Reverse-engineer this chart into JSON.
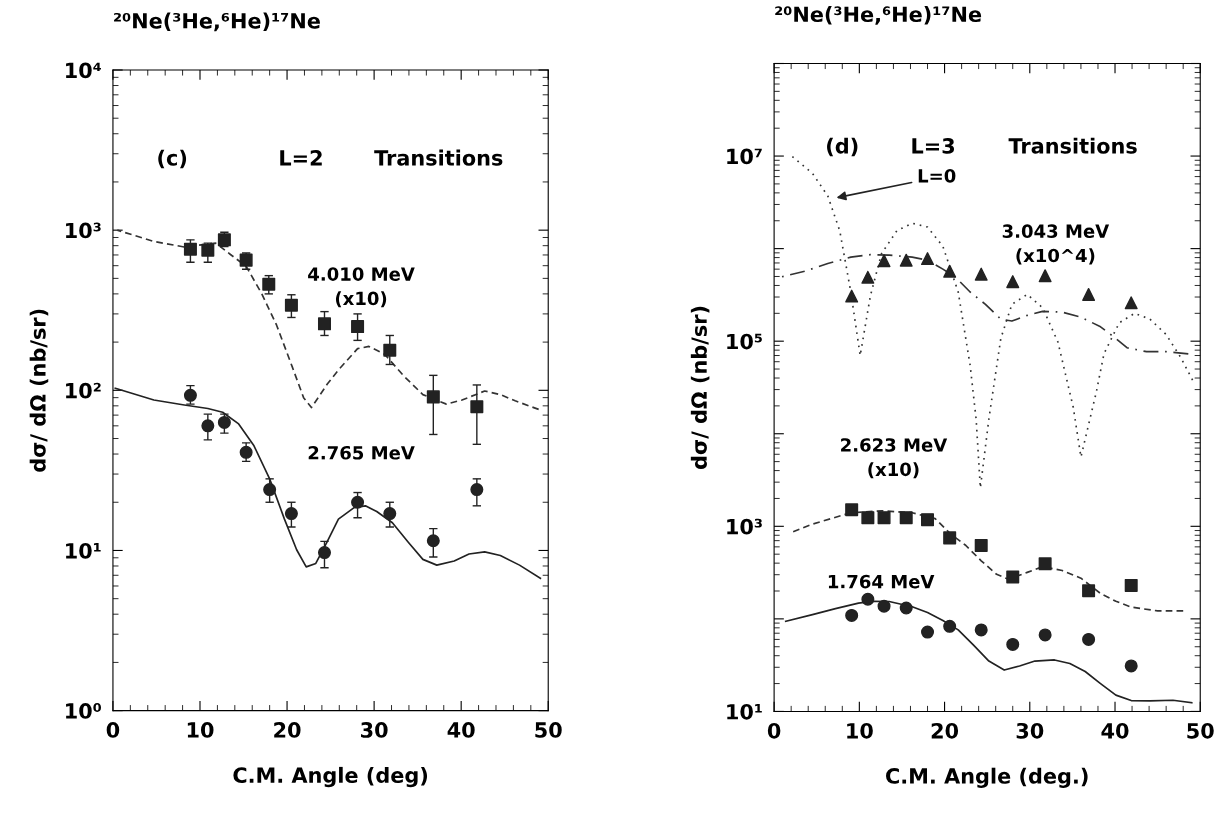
{
  "chart_data": [
    {
      "type": "scatter",
      "title": "²⁰Ne(³He,⁶He)¹⁷Ne",
      "xlabel": "C.M. Angle (deg)",
      "ylabel": "dσ/ dΩ (nb/sr)",
      "log": "y",
      "xlim": [
        0,
        50
      ],
      "xticks": [
        0,
        10,
        20,
        30,
        40,
        50
      ],
      "ylim": [
        1,
        10000
      ],
      "yticks": [
        {
          "value": 1,
          "label": "10⁰"
        },
        {
          "value": 10,
          "label": "10¹"
        },
        {
          "value": 100,
          "label": "10²"
        },
        {
          "value": 1000,
          "label": "10³"
        },
        {
          "value": 10000,
          "label": "10⁴"
        }
      ],
      "annotations": [
        "(c)",
        "L=2",
        "Transitions"
      ],
      "series": [
        {
          "name": "4.010 MeV\n(x10)",
          "marker": "square",
          "color": "#222222",
          "x": [
            8.9,
            10.9,
            12.8,
            15.3,
            17.9,
            20.5,
            24.3,
            28.1,
            31.8,
            36.8,
            41.8
          ],
          "values": [
            760,
            750,
            870,
            650,
            460,
            340,
            260,
            250,
            178,
            91,
            79
          ],
          "errors": [
            [
              630,
              870
            ],
            [
              630,
              830
            ],
            [
              790,
              970
            ],
            [
              570,
              720
            ],
            [
              400,
              520
            ],
            [
              285,
              395
            ],
            [
              220,
              310
            ],
            [
              205,
              300
            ],
            [
              145,
              220
            ],
            [
              53,
              124
            ],
            [
              46,
              108
            ]
          ]
        },
        {
          "name": "2.765 MeV",
          "marker": "circle",
          "color": "#222222",
          "x": [
            8.9,
            10.9,
            12.8,
            15.3,
            18.0,
            20.5,
            24.3,
            28.1,
            31.8,
            36.8,
            41.8
          ],
          "values": [
            93,
            60,
            63,
            41,
            24,
            17,
            9.7,
            20,
            17,
            11.5,
            24
          ],
          "errors": [
            [
              82,
              107
            ],
            [
              49,
              71
            ],
            [
              54,
              71
            ],
            [
              36,
              47
            ],
            [
              20,
              28
            ],
            [
              14,
              20
            ],
            [
              7.8,
              11.4
            ],
            [
              16,
              23
            ],
            [
              14,
              20
            ],
            [
              9.1,
              13.7
            ],
            [
              19,
              28
            ]
          ]
        },
        {
          "type": "line",
          "line_style": "dashed",
          "color": "#333333",
          "x": [
            0.5,
            4.7,
            8.2,
            11.8,
            13.5,
            15.3,
            17.1,
            18.8,
            20.6,
            21.9,
            22.8,
            24.6,
            25.9,
            28.1,
            29.4,
            31.2,
            33.4,
            35.6,
            38.3,
            40.1,
            42.7,
            44.5,
            46.2,
            48.9
          ],
          "values": [
            1000,
            850,
            785,
            830,
            705,
            595,
            400,
            255,
            140,
            90,
            78,
            109,
            134,
            182,
            188,
            168,
            123,
            94,
            82,
            87,
            99,
            94,
            86,
            76
          ]
        },
        {
          "type": "line",
          "line_style": "solid",
          "color": "#222222",
          "x": [
            0.27,
            4.7,
            8.2,
            10.9,
            12.6,
            14.4,
            16.2,
            18.0,
            19.7,
            21.1,
            22.2,
            23.3,
            24.6,
            25.9,
            27.7,
            29.0,
            30.3,
            32.1,
            33.9,
            35.6,
            37.2,
            39.2,
            40.9,
            42.7,
            44.5,
            46.7,
            49.1
          ],
          "values": [
            103,
            87,
            81,
            77,
            73,
            62,
            45,
            28,
            15.7,
            10.1,
            7.9,
            8.3,
            11.3,
            15.7,
            18.5,
            19,
            17.5,
            14.9,
            11.3,
            8.8,
            8.1,
            8.6,
            9.5,
            9.8,
            9.3,
            8.1,
            6.7
          ]
        }
      ]
    },
    {
      "type": "scatter",
      "title": "²⁰Ne(³He,⁶He)¹⁷Ne",
      "xlabel": "C.M. Angle (deg.)",
      "ylabel": "dσ/ dΩ (nb/sr)",
      "log": "y",
      "xlim": [
        0,
        50
      ],
      "xticks": [
        0,
        10,
        20,
        30,
        40,
        50
      ],
      "ylim": [
        10,
        100000000
      ],
      "yticks": [
        {
          "value": 10,
          "label": "10¹"
        },
        {
          "value": 100,
          "label": null
        },
        {
          "value": 1000,
          "label": "10³"
        },
        {
          "value": 10000,
          "label": null
        },
        {
          "value": 100000,
          "label": "10⁵"
        },
        {
          "value": 1000000,
          "label": null
        },
        {
          "value": 10000000,
          "label": "10⁷"
        },
        {
          "value": 100000000,
          "label": null
        }
      ],
      "annotations": [
        "(d)",
        "L=3",
        "Transitions",
        {
          "text": "L=0",
          "x": 7.0,
          "y": 3500000
        }
      ],
      "series": [
        {
          "name": "3.043 MeV\n(x10^4)",
          "marker": "triangle",
          "color": "#222222",
          "x": [
            9.1,
            11.0,
            12.9,
            15.5,
            18.0,
            20.6,
            24.3,
            28.0,
            31.8,
            36.9,
            41.9
          ],
          "values": [
            307000,
            490000,
            740000,
            750000,
            780000,
            570000,
            530000,
            440000,
            510000,
            320000,
            260000
          ]
        },
        {
          "name": "2.623 MeV\n(x10)",
          "marker": "square",
          "color": "#222222",
          "x": [
            9.1,
            11.0,
            12.9,
            15.5,
            18.0,
            20.6,
            24.3,
            28.0,
            31.8,
            36.9,
            41.9
          ],
          "values": [
            1510,
            1240,
            1240,
            1240,
            1180,
            750,
            620,
            284,
            393,
            201,
            230
          ]
        },
        {
          "name": "1.764 MeV",
          "marker": "circle",
          "color": "#222222",
          "x": [
            9.1,
            11.0,
            12.9,
            15.5,
            18.0,
            20.6,
            24.3,
            28.0,
            31.8,
            36.9,
            41.9
          ],
          "values": [
            109,
            163,
            137,
            131,
            72,
            83,
            76,
            53,
            67,
            60,
            31
          ]
        },
        {
          "type": "line",
          "line_style": "dotted",
          "color": "#333333",
          "x": [
            1.8,
            4.5,
            6.3,
            7.7,
            9.0,
            10.1,
            11.3,
            12.6,
            14.4,
            16.2,
            18.0,
            19.8,
            21.6,
            23.0,
            23.7,
            24.2,
            25.2,
            26.6,
            27.9,
            29.7,
            31.5,
            33.3,
            35.1,
            36.0,
            37.8,
            38.7,
            40.5,
            42.3,
            44.1,
            46.0,
            47.7,
            49.1
          ],
          "values": [
            10500000,
            6500000,
            3700000,
            1560000,
            340000,
            70000,
            310000,
            880000,
            1560000,
            1880000,
            1710000,
            1060000,
            340000,
            55000,
            14500,
            2600,
            14500,
            107000,
            250000,
            320000,
            230000,
            98000,
            19300,
            5600,
            28000,
            73000,
            158000,
            200000,
            173000,
            118000,
            67000,
            38000
          ]
        },
        {
          "type": "line",
          "line_style": "dashdot",
          "color": "#333333",
          "x": [
            0.9,
            3.6,
            6.3,
            9.0,
            11.3,
            13.5,
            16.2,
            18.0,
            19.8,
            21.2,
            23.0,
            24.8,
            26.6,
            27.9,
            29.7,
            31.5,
            33.8,
            36.0,
            38.3,
            40.1,
            41.4,
            43.7,
            46.0,
            48.6
          ],
          "values": [
            496000,
            570000,
            690000,
            810000,
            860000,
            850000,
            810000,
            750000,
            600000,
            500000,
            340000,
            250000,
            173000,
            165000,
            190000,
            210000,
            206000,
            182000,
            143000,
            107000,
            85000,
            77000,
            77000,
            73000
          ]
        },
        {
          "type": "line",
          "line_style": "dashed",
          "color": "#333333",
          "x": [
            1.8,
            4.4,
            9.0,
            12.6,
            16.2,
            18.9,
            20.7,
            22.5,
            24.3,
            26.1,
            27.5,
            29.7,
            31.5,
            33.8,
            36.0,
            38.3,
            40.1,
            41.9,
            45.0,
            48.0
          ],
          "values": [
            843,
            1050,
            1400,
            1470,
            1400,
            1210,
            830,
            620,
            424,
            303,
            268,
            318,
            367,
            333,
            275,
            188,
            155,
            134,
            122,
            122
          ]
        },
        {
          "type": "line",
          "line_style": "solid",
          "color": "#222222",
          "x": [
            1.36,
            4.5,
            7.2,
            9.9,
            11.7,
            13.5,
            16.2,
            18.0,
            19.8,
            21.6,
            23.4,
            25.2,
            27.0,
            28.8,
            30.6,
            32.9,
            34.7,
            36.5,
            38.3,
            40.1,
            41.9,
            44.1,
            46.8,
            49.0
          ],
          "values": [
            94,
            111,
            129,
            148,
            155,
            154,
            135,
            117,
            96,
            76,
            52,
            35,
            28,
            31,
            35,
            36,
            33,
            27,
            20,
            15,
            13.1,
            13,
            13.2,
            12.4
          ]
        }
      ]
    }
  ]
}
